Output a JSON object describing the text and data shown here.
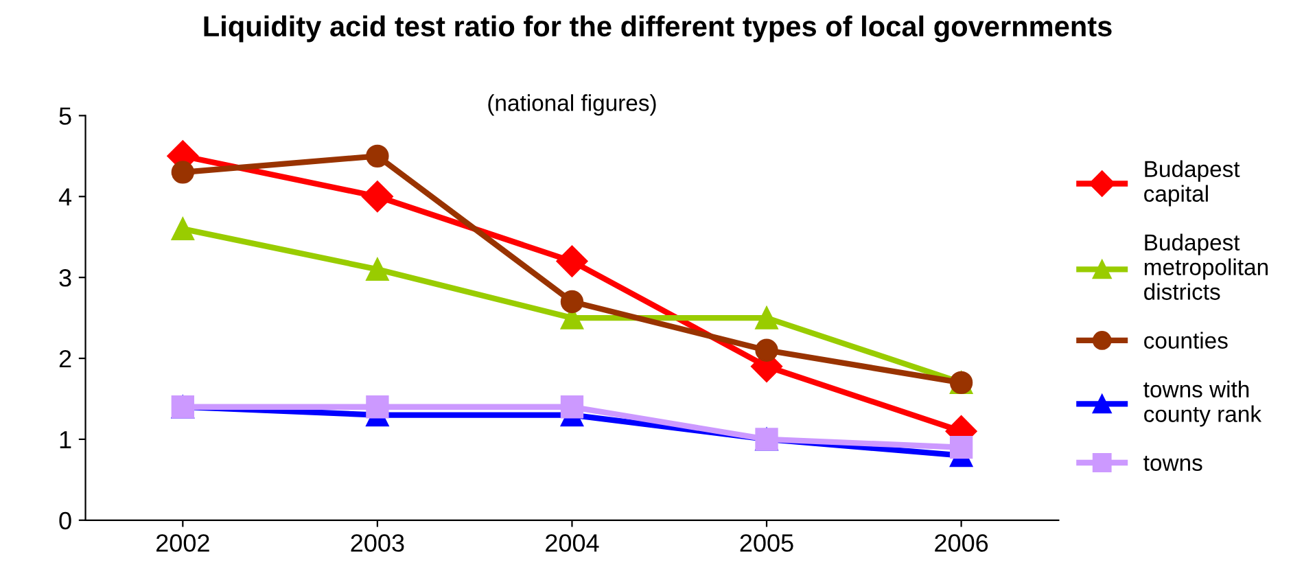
{
  "chart_data": {
    "type": "line",
    "title": "Liquidity acid test ratio for the different types of local governments",
    "subtitle": "(national figures)",
    "categories": [
      "2002",
      "2003",
      "2004",
      "2005",
      "2006"
    ],
    "ylim": [
      0,
      5
    ],
    "yticks": [
      0,
      1,
      2,
      3,
      4,
      5
    ],
    "grid": false,
    "legend": "right",
    "line_style": "solid",
    "series": [
      {
        "name": "Budapest\ncapital",
        "color": "#ff0000",
        "marker": "diamond",
        "values": [
          4.5,
          4.0,
          3.2,
          1.9,
          1.1
        ]
      },
      {
        "name": "Budapest\nmetropolitan\ndistricts",
        "color": "#99cc00",
        "marker": "triangle",
        "values": [
          3.6,
          3.1,
          2.5,
          2.5,
          1.7
        ]
      },
      {
        "name": "counties",
        "color": "#993300",
        "marker": "circle",
        "values": [
          4.3,
          4.5,
          2.7,
          2.1,
          1.7
        ]
      },
      {
        "name": "towns with\ncounty rank",
        "color": "#0000ff",
        "marker": "triangle",
        "values": [
          1.4,
          1.3,
          1.3,
          1.0,
          0.8
        ]
      },
      {
        "name": "towns",
        "color": "#cc99ff",
        "marker": "square",
        "values": [
          1.4,
          1.4,
          1.4,
          1.0,
          0.9
        ]
      }
    ]
  }
}
